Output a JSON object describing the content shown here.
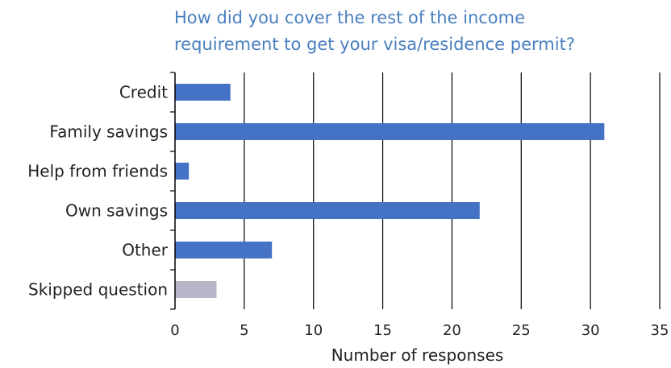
{
  "chart_data": {
    "type": "bar",
    "orientation": "horizontal",
    "title_lines": [
      "How did you cover the rest of the income",
      "requirement to get your visa/residence permit?"
    ],
    "xlabel": "Number of responses",
    "ylabel": "",
    "xlim": [
      0,
      35
    ],
    "xticks": [
      0,
      5,
      10,
      15,
      20,
      25,
      30,
      35
    ],
    "grid": "vertical",
    "categories": [
      "Credit",
      "Family savings",
      "Help from friends",
      "Own savings",
      "Other",
      "Skipped question"
    ],
    "values": [
      4,
      31,
      1,
      22,
      7,
      3
    ],
    "colors": [
      "#4472c4",
      "#4472c4",
      "#4472c4",
      "#4472c4",
      "#4472c4",
      "#b8b7c9"
    ]
  }
}
